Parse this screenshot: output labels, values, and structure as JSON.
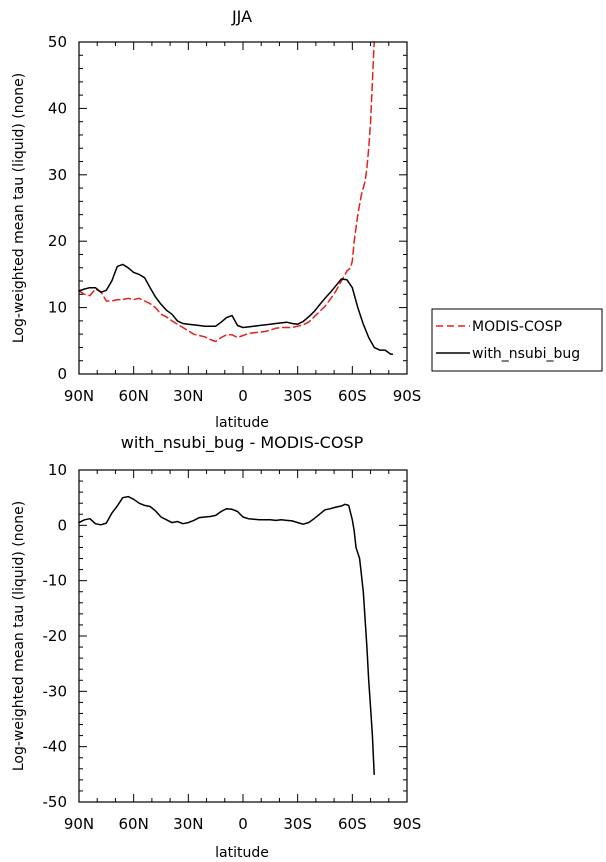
{
  "chart_data": [
    {
      "type": "line",
      "title": "JJA",
      "xlabel": "latitude",
      "ylabel": "Log-weighted mean tau (liquid) (none)",
      "xlim": [
        90,
        -90
      ],
      "ylim": [
        0,
        50
      ],
      "x_ticks": [
        90,
        60,
        30,
        0,
        -30,
        -60,
        -90
      ],
      "x_tick_labels": [
        "90N",
        "60N",
        "30N",
        "0",
        "30S",
        "60S",
        "90S"
      ],
      "y_ticks": [
        0,
        10,
        20,
        30,
        40,
        50
      ],
      "y_tick_labels": [
        "0",
        "10",
        "20",
        "30",
        "40",
        "50"
      ],
      "legend": {
        "placement": "right",
        "entries": [
          "MODIS-COSP",
          "with_nsubi_bug"
        ]
      },
      "series": [
        {
          "name": "MODIS-COSP",
          "color": "#e8201a",
          "dash": "dashed",
          "x": [
            90,
            87,
            84,
            81,
            78,
            75,
            72,
            69,
            66,
            63,
            60,
            57,
            54,
            51,
            48,
            45,
            42,
            39,
            36,
            33,
            30,
            27,
            24,
            21,
            18,
            15,
            12,
            9,
            6,
            3,
            0,
            -3,
            -6,
            -9,
            -12,
            -15,
            -18,
            -21,
            -24,
            -27,
            -30,
            -33,
            -36,
            -39,
            -42,
            -45,
            -48,
            -51,
            -54,
            -57,
            -59,
            -60,
            -61,
            -63,
            -65,
            -67,
            -68,
            -69,
            -70,
            -71,
            -72
          ],
          "y": [
            12.5,
            12.0,
            11.8,
            12.8,
            12.4,
            11.0,
            11.0,
            11.2,
            11.2,
            11.4,
            11.2,
            11.4,
            11.0,
            10.6,
            10.0,
            9.0,
            8.6,
            8.0,
            7.5,
            7.0,
            6.5,
            6.0,
            5.8,
            5.6,
            5.2,
            4.9,
            5.5,
            5.9,
            5.9,
            5.5,
            5.8,
            6.1,
            6.2,
            6.3,
            6.4,
            6.6,
            6.9,
            7.0,
            7.0,
            7.0,
            7.2,
            7.4,
            7.8,
            8.6,
            9.4,
            10.2,
            11.3,
            12.5,
            14.0,
            15.5,
            16.0,
            17.0,
            20.0,
            24.0,
            27.0,
            29.0,
            31.0,
            34.0,
            38.0,
            44.0,
            50.0
          ]
        },
        {
          "name": "with_nsubi_bug",
          "color": "#000000",
          "dash": "solid",
          "x": [
            90,
            87,
            84,
            81,
            78,
            75,
            72,
            69,
            66,
            63,
            60,
            57,
            54,
            51,
            48,
            45,
            42,
            39,
            36,
            33,
            30,
            27,
            24,
            21,
            18,
            15,
            12,
            9,
            6,
            3,
            0,
            -3,
            -6,
            -9,
            -12,
            -15,
            -18,
            -21,
            -24,
            -27,
            -30,
            -33,
            -36,
            -39,
            -42,
            -45,
            -48,
            -51,
            -54,
            -57,
            -60,
            -63,
            -66,
            -69,
            -72,
            -75,
            -78,
            -81,
            -82
          ],
          "y": [
            12.5,
            12.8,
            13.0,
            13.0,
            12.3,
            12.6,
            14.0,
            16.2,
            16.5,
            16.0,
            15.3,
            15.0,
            14.5,
            13.0,
            11.6,
            10.5,
            9.6,
            9.0,
            8.0,
            7.6,
            7.5,
            7.4,
            7.3,
            7.2,
            7.2,
            7.2,
            7.8,
            8.5,
            8.8,
            7.3,
            7.0,
            7.1,
            7.2,
            7.3,
            7.4,
            7.5,
            7.6,
            7.7,
            7.8,
            7.6,
            7.5,
            7.9,
            8.6,
            9.4,
            10.4,
            11.4,
            12.3,
            13.3,
            14.3,
            14.2,
            13.0,
            10.0,
            7.5,
            5.5,
            4.0,
            3.6,
            3.6,
            3.0,
            3.0
          ]
        }
      ]
    },
    {
      "type": "line",
      "title": "with_nsubi_bug - MODIS-COSP",
      "xlabel": "latitude",
      "ylabel": "Log-weighted mean tau (liquid) (none)",
      "xlim": [
        90,
        -90
      ],
      "ylim": [
        -50,
        10
      ],
      "x_ticks": [
        90,
        60,
        30,
        0,
        -30,
        -60,
        -90
      ],
      "x_tick_labels": [
        "90N",
        "60N",
        "30N",
        "0",
        "30S",
        "60S",
        "90S"
      ],
      "y_ticks": [
        -50,
        -40,
        -30,
        -20,
        -10,
        0,
        10
      ],
      "y_tick_labels": [
        "-50",
        "-40",
        "-30",
        "-20",
        "-10",
        "0",
        "10"
      ],
      "series": [
        {
          "name": "with_nsubi_bug - MODIS-COSP",
          "color": "#000000",
          "dash": "solid",
          "x": [
            90,
            87,
            84,
            81,
            78,
            75,
            72,
            69,
            66,
            63,
            60,
            57,
            54,
            51,
            48,
            45,
            42,
            39,
            36,
            33,
            30,
            27,
            24,
            21,
            18,
            15,
            12,
            9,
            6,
            3,
            0,
            -3,
            -6,
            -9,
            -12,
            -15,
            -18,
            -21,
            -24,
            -27,
            -30,
            -33,
            -36,
            -39,
            -42,
            -45,
            -48,
            -51,
            -54,
            -56,
            -58,
            -60,
            -61,
            -62,
            -64,
            -66,
            -68,
            -69,
            -70,
            -71,
            -72
          ],
          "y": [
            0.5,
            1.0,
            1.2,
            0.3,
            0.1,
            0.4,
            2.2,
            3.5,
            5.0,
            5.2,
            4.7,
            4.0,
            3.6,
            3.4,
            2.6,
            1.5,
            1.0,
            0.5,
            0.7,
            0.3,
            0.5,
            0.9,
            1.4,
            1.5,
            1.6,
            1.8,
            2.5,
            3.0,
            2.9,
            2.5,
            1.5,
            1.2,
            1.1,
            1.0,
            1.0,
            1.0,
            0.9,
            1.0,
            0.9,
            0.8,
            0.5,
            0.2,
            0.5,
            1.2,
            2.0,
            2.8,
            3.0,
            3.3,
            3.5,
            3.8,
            3.6,
            1.0,
            -1.0,
            -4.0,
            -6.0,
            -12.0,
            -22.0,
            -28.0,
            -33.0,
            -38.0,
            -45.0
          ]
        }
      ]
    }
  ]
}
